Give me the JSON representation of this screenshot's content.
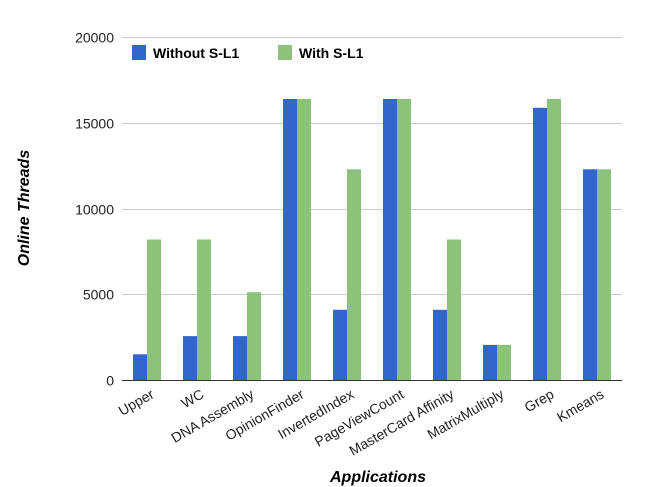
{
  "chart_data": {
    "type": "bar",
    "title": "",
    "xlabel": "Applications",
    "ylabel": "Online Threads",
    "ylim": [
      0,
      20000
    ],
    "yticks": [
      0,
      5000,
      10000,
      15000,
      20000
    ],
    "grid": true,
    "legend_position": "top-left",
    "categories": [
      "Upper",
      "WC",
      "DNA Assembly",
      "OpinionFinder",
      "InvertedIndex",
      "PageViewCount",
      "MasterCard Affinity",
      "MatrixMultiply",
      "Grep",
      "Kmeans"
    ],
    "series": [
      {
        "name": "Without S-L1",
        "color": "#3366cc",
        "values": [
          1500,
          2560,
          2560,
          16384,
          4096,
          16384,
          4096,
          2048,
          15872,
          12288
        ]
      },
      {
        "name": "With S-L1",
        "color": "#8bc37a",
        "values": [
          8192,
          8192,
          5120,
          16384,
          12288,
          16384,
          8192,
          2048,
          16384,
          12288
        ]
      }
    ]
  }
}
